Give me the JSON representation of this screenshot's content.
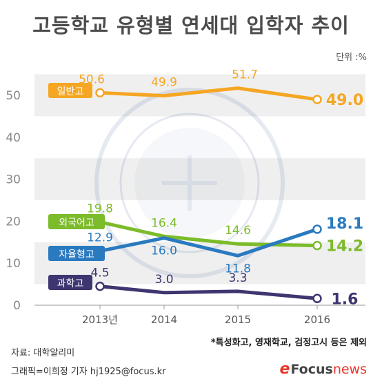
{
  "title": "고등학교 유형별 연세대 입학자 추이",
  "unit": "단위 :%",
  "footnote": "*특성화고, 영재학교, 검정고시 등은 제외",
  "source": "자료: 대학알리미",
  "credit": "그래픽=이희정 기자 hj1925@focus.kr",
  "logo": {
    "e": "e",
    "focus": "Focus",
    "news": "news"
  },
  "chart_data": {
    "type": "line",
    "categories": [
      "2013년",
      "2014",
      "2015",
      "2016"
    ],
    "ylim": [
      0,
      50
    ],
    "yticks": [
      "0",
      "10",
      "20",
      "30",
      "40",
      "50"
    ],
    "grid": true,
    "series": [
      {
        "name": "일반고",
        "color": "#f5a623",
        "values": [
          50.6,
          49.9,
          51.7,
          49.0
        ],
        "labels": [
          "50.6",
          "49.9",
          "51.7",
          "49.0"
        ]
      },
      {
        "name": "외국어고",
        "color": "#7cbb2a",
        "values": [
          19.8,
          16.4,
          14.6,
          14.2
        ],
        "labels": [
          "19.8",
          "16.4",
          "14.6",
          "14.2"
        ]
      },
      {
        "name": "자율형고",
        "color": "#2a7ac0",
        "values": [
          12.9,
          16.0,
          11.8,
          18.1
        ],
        "labels": [
          "12.9",
          "16.0",
          "11.8",
          "18.1"
        ]
      },
      {
        "name": "과학고",
        "color": "#3d3670",
        "values": [
          4.5,
          3.0,
          3.3,
          1.6
        ],
        "labels": [
          "4.5",
          "3.0",
          "3.3",
          "1.6"
        ]
      }
    ]
  }
}
